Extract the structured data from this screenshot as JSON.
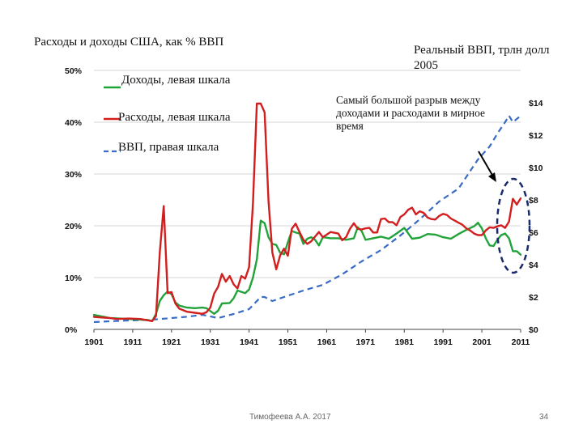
{
  "chart_data": {
    "type": "line",
    "title": "Расходы и доходы США, как % ВВП",
    "right_axis_title": "Реальный ВВП, трлн долл 2005",
    "annotation": "Самый большой разрыв между доходами и расходами в мирное время",
    "left_ylim": [
      0,
      50
    ],
    "right_ylim": [
      0,
      14
    ],
    "left_ticks": [
      "0%",
      "10%",
      "20%",
      "30%",
      "40%",
      "50%"
    ],
    "right_ticks": [
      "$0",
      "$2",
      "$4",
      "$6",
      "$8",
      "$10",
      "$12",
      "$14"
    ],
    "x_ticks": [
      "1901",
      "1911",
      "1921",
      "1931",
      "1941",
      "1951",
      "1961",
      "1971",
      "1981",
      "1991",
      "2001",
      "2011"
    ],
    "xlim": [
      1901,
      2011
    ],
    "legend": {
      "revenue": "Доходы, левая шкала",
      "spending": "Расходы, левая шкала",
      "gdp": "ВВП, правая шкала"
    },
    "series": [
      {
        "name": "Доходы, левая шкала",
        "axis": "left",
        "color": "#22a33a",
        "style": "solid",
        "points": [
          [
            1901,
            2.8
          ],
          [
            1905,
            2.2
          ],
          [
            1910,
            2.0
          ],
          [
            1915,
            1.8
          ],
          [
            1916,
            1.6
          ],
          [
            1917,
            3.0
          ],
          [
            1918,
            5.5
          ],
          [
            1919,
            6.6
          ],
          [
            1920,
            7.3
          ],
          [
            1921,
            6.8
          ],
          [
            1922,
            5.2
          ],
          [
            1923,
            4.6
          ],
          [
            1925,
            4.2
          ],
          [
            1927,
            4.1
          ],
          [
            1929,
            4.2
          ],
          [
            1930,
            4.1
          ],
          [
            1932,
            3.0
          ],
          [
            1933,
            3.6
          ],
          [
            1934,
            5.0
          ],
          [
            1936,
            5.1
          ],
          [
            1937,
            6.0
          ],
          [
            1938,
            7.5
          ],
          [
            1940,
            7.0
          ],
          [
            1941,
            7.7
          ],
          [
            1942,
            10.0
          ],
          [
            1943,
            13.5
          ],
          [
            1944,
            21.0
          ],
          [
            1945,
            20.5
          ],
          [
            1946,
            17.8
          ],
          [
            1947,
            16.5
          ],
          [
            1948,
            16.3
          ],
          [
            1949,
            14.8
          ],
          [
            1950,
            14.5
          ],
          [
            1951,
            16.8
          ],
          [
            1952,
            19.0
          ],
          [
            1953,
            18.7
          ],
          [
            1954,
            18.5
          ],
          [
            1955,
            16.5
          ],
          [
            1956,
            17.5
          ],
          [
            1957,
            17.8
          ],
          [
            1958,
            17.3
          ],
          [
            1959,
            16.2
          ],
          [
            1960,
            17.8
          ],
          [
            1962,
            17.6
          ],
          [
            1964,
            17.6
          ],
          [
            1966,
            17.3
          ],
          [
            1968,
            17.6
          ],
          [
            1969,
            19.7
          ],
          [
            1970,
            19.0
          ],
          [
            1971,
            17.3
          ],
          [
            1973,
            17.6
          ],
          [
            1975,
            17.9
          ],
          [
            1977,
            17.5
          ],
          [
            1979,
            18.5
          ],
          [
            1981,
            19.6
          ],
          [
            1983,
            17.5
          ],
          [
            1985,
            17.7
          ],
          [
            1987,
            18.4
          ],
          [
            1989,
            18.3
          ],
          [
            1991,
            17.8
          ],
          [
            1993,
            17.5
          ],
          [
            1995,
            18.4
          ],
          [
            1997,
            19.2
          ],
          [
            1999,
            19.9
          ],
          [
            2000,
            20.6
          ],
          [
            2001,
            19.5
          ],
          [
            2002,
            17.6
          ],
          [
            2003,
            16.2
          ],
          [
            2004,
            16.1
          ],
          [
            2005,
            17.3
          ],
          [
            2006,
            18.2
          ],
          [
            2007,
            18.5
          ],
          [
            2008,
            17.6
          ],
          [
            2009,
            15.1
          ],
          [
            2010,
            15.1
          ],
          [
            2011,
            14.4
          ]
        ]
      },
      {
        "name": "Расходы, левая шкала",
        "axis": "left",
        "color": "#d21e1e",
        "style": "solid",
        "points": [
          [
            1901,
            2.4
          ],
          [
            1903,
            2.3
          ],
          [
            1905,
            2.2
          ],
          [
            1907,
            2.0
          ],
          [
            1910,
            2.1
          ],
          [
            1913,
            2.0
          ],
          [
            1916,
            1.6
          ],
          [
            1917,
            2.6
          ],
          [
            1918,
            15.0
          ],
          [
            1919,
            23.8
          ],
          [
            1920,
            7.0
          ],
          [
            1921,
            7.2
          ],
          [
            1922,
            5.0
          ],
          [
            1923,
            4.0
          ],
          [
            1925,
            3.4
          ],
          [
            1927,
            3.2
          ],
          [
            1929,
            3.0
          ],
          [
            1930,
            3.3
          ],
          [
            1931,
            4.2
          ],
          [
            1932,
            6.9
          ],
          [
            1933,
            8.2
          ],
          [
            1934,
            10.7
          ],
          [
            1935,
            9.2
          ],
          [
            1936,
            10.3
          ],
          [
            1937,
            8.7
          ],
          [
            1938,
            7.9
          ],
          [
            1939,
            10.3
          ],
          [
            1940,
            9.8
          ],
          [
            1941,
            12.0
          ],
          [
            1942,
            24.3
          ],
          [
            1943,
            43.6
          ],
          [
            1944,
            43.6
          ],
          [
            1945,
            41.9
          ],
          [
            1946,
            24.8
          ],
          [
            1947,
            14.8
          ],
          [
            1948,
            11.6
          ],
          [
            1949,
            14.3
          ],
          [
            1950,
            15.6
          ],
          [
            1951,
            14.2
          ],
          [
            1952,
            19.4
          ],
          [
            1953,
            20.4
          ],
          [
            1954,
            18.8
          ],
          [
            1955,
            17.3
          ],
          [
            1956,
            16.5
          ],
          [
            1957,
            17.0
          ],
          [
            1958,
            17.9
          ],
          [
            1959,
            18.8
          ],
          [
            1960,
            17.8
          ],
          [
            1962,
            18.8
          ],
          [
            1964,
            18.5
          ],
          [
            1965,
            17.2
          ],
          [
            1966,
            17.8
          ],
          [
            1967,
            19.4
          ],
          [
            1968,
            20.5
          ],
          [
            1969,
            19.4
          ],
          [
            1970,
            19.3
          ],
          [
            1971,
            19.5
          ],
          [
            1972,
            19.6
          ],
          [
            1973,
            18.7
          ],
          [
            1974,
            18.7
          ],
          [
            1975,
            21.3
          ],
          [
            1976,
            21.4
          ],
          [
            1977,
            20.7
          ],
          [
            1978,
            20.7
          ],
          [
            1979,
            20.1
          ],
          [
            1980,
            21.7
          ],
          [
            1981,
            22.2
          ],
          [
            1982,
            23.1
          ],
          [
            1983,
            23.5
          ],
          [
            1984,
            22.2
          ],
          [
            1985,
            22.8
          ],
          [
            1986,
            22.5
          ],
          [
            1987,
            21.6
          ],
          [
            1988,
            21.3
          ],
          [
            1989,
            21.2
          ],
          [
            1990,
            21.9
          ],
          [
            1991,
            22.3
          ],
          [
            1992,
            22.1
          ],
          [
            1993,
            21.4
          ],
          [
            1994,
            21.0
          ],
          [
            1995,
            20.6
          ],
          [
            1996,
            20.2
          ],
          [
            1997,
            19.5
          ],
          [
            1998,
            19.1
          ],
          [
            1999,
            18.5
          ],
          [
            2000,
            18.2
          ],
          [
            2001,
            18.2
          ],
          [
            2002,
            19.1
          ],
          [
            2003,
            19.7
          ],
          [
            2004,
            19.6
          ],
          [
            2005,
            19.9
          ],
          [
            2006,
            20.1
          ],
          [
            2007,
            19.6
          ],
          [
            2008,
            20.8
          ],
          [
            2009,
            25.2
          ],
          [
            2010,
            24.1
          ],
          [
            2011,
            25.3
          ]
        ]
      },
      {
        "name": "ВВП, правая шкала",
        "axis": "right",
        "color": "#3a6bc4",
        "style": "dashed",
        "points": [
          [
            1901,
            0.45
          ],
          [
            1905,
            0.5
          ],
          [
            1910,
            0.55
          ],
          [
            1915,
            0.58
          ],
          [
            1920,
            0.68
          ],
          [
            1925,
            0.78
          ],
          [
            1929,
            0.9
          ],
          [
            1933,
            0.7
          ],
          [
            1937,
            0.95
          ],
          [
            1941,
            1.25
          ],
          [
            1944,
            2.0
          ],
          [
            1945,
            2.0
          ],
          [
            1947,
            1.75
          ],
          [
            1950,
            2.0
          ],
          [
            1955,
            2.4
          ],
          [
            1960,
            2.75
          ],
          [
            1965,
            3.4
          ],
          [
            1970,
            4.2
          ],
          [
            1975,
            4.9
          ],
          [
            1980,
            5.8
          ],
          [
            1985,
            6.8
          ],
          [
            1990,
            7.9
          ],
          [
            1995,
            8.7
          ],
          [
            2000,
            10.5
          ],
          [
            2003,
            11.3
          ],
          [
            2005,
            12.1
          ],
          [
            2007,
            12.8
          ],
          [
            2008,
            13.2
          ],
          [
            2009,
            12.8
          ],
          [
            2011,
            13.2
          ]
        ]
      }
    ]
  },
  "footer": {
    "author": "Тимофеева А.А. 2017",
    "page_number": "34"
  }
}
